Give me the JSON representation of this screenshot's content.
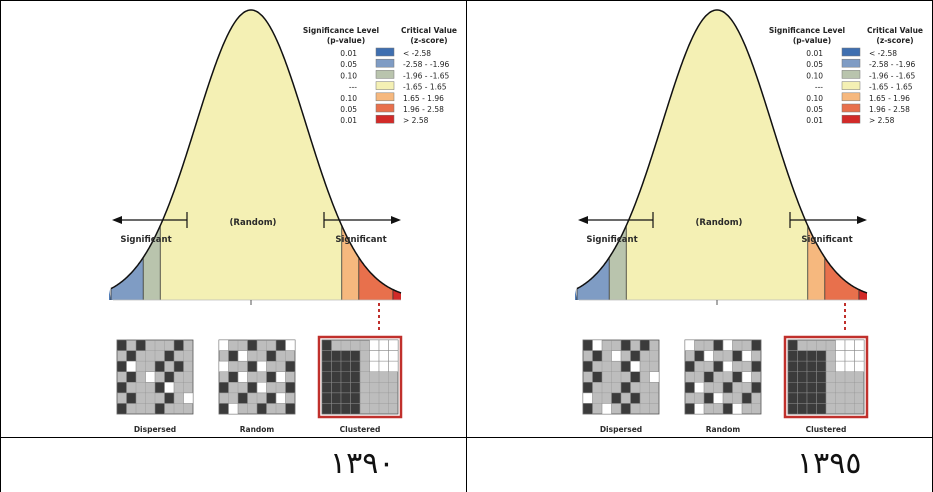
{
  "panels": [
    {
      "year": "١٣٩٠",
      "legend": {
        "headers": {
          "sig_line1": "Significance Level",
          "sig_line2": "(p-value)",
          "crit_line1": "Critical Value",
          "crit_line2": "(z-score)"
        },
        "rows": [
          {
            "p": "0.01",
            "z": "< -2.58",
            "color": "#3f6fb0"
          },
          {
            "p": "0.05",
            "z": "-2.58 - -1.96",
            "color": "#7f9cc4"
          },
          {
            "p": "0.10",
            "z": "-1.96 - -1.65",
            "color": "#b9c4ad"
          },
          {
            "p": "---",
            "z": "-1.65 - 1.65",
            "color": "#f4f0b4"
          },
          {
            "p": "0.10",
            "z": "1.65 - 1.96",
            "color": "#f6b87e"
          },
          {
            "p": "0.05",
            "z": "1.96 - 2.58",
            "color": "#e8704c"
          },
          {
            "p": "0.01",
            "z": "> 2.58",
            "color": "#d22a28"
          }
        ]
      },
      "labels": {
        "left": "Significant",
        "center": "(Random)",
        "right": "Significant"
      },
      "maps": [
        "Dispersed",
        "Random",
        "Clustered"
      ]
    },
    {
      "year": "١٣٩٥",
      "legend": {
        "headers": {
          "sig_line1": "Significance Level",
          "sig_line2": "(p-value)",
          "crit_line1": "Critical Value",
          "crit_line2": "(z-score)"
        },
        "rows": [
          {
            "p": "0.01",
            "z": "< -2.58",
            "color": "#3f6fb0"
          },
          {
            "p": "0.05",
            "z": "-2.58 - -1.96",
            "color": "#7f9cc4"
          },
          {
            "p": "0.10",
            "z": "-1.96 - -1.65",
            "color": "#b9c4ad"
          },
          {
            "p": "---",
            "z": "-1.65 - 1.65",
            "color": "#f4f0b4"
          },
          {
            "p": "0.10",
            "z": "1.65 - 1.96",
            "color": "#f6b87e"
          },
          {
            "p": "0.05",
            "z": "1.96 - 2.58",
            "color": "#e8704c"
          },
          {
            "p": "0.01",
            "z": "> 2.58",
            "color": "#d22a28"
          }
        ]
      },
      "labels": {
        "left": "Significant",
        "center": "(Random)",
        "right": "Significant"
      },
      "maps": [
        "Dispersed",
        "Random",
        "Clustered"
      ]
    }
  ],
  "colors": {
    "curve_stroke": "#111111",
    "map_fill": "#bdbdbd",
    "map_dark": "#3b3b3b",
    "highlight": "#c0302c"
  }
}
